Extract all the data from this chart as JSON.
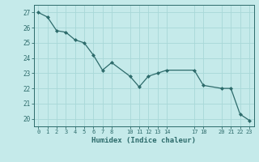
{
  "x_values": [
    0,
    1,
    2,
    3,
    4,
    5,
    6,
    7,
    8,
    10,
    11,
    12,
    13,
    14,
    17,
    18,
    20,
    21,
    22,
    23
  ],
  "y_values": [
    27.0,
    26.7,
    25.8,
    25.7,
    25.2,
    25.0,
    24.2,
    23.2,
    23.7,
    22.8,
    22.1,
    22.8,
    23.0,
    23.2,
    23.2,
    22.2,
    22.0,
    22.0,
    20.3,
    19.9
  ],
  "x_ticks": [
    0,
    1,
    2,
    3,
    4,
    5,
    6,
    7,
    8,
    10,
    11,
    12,
    13,
    14,
    17,
    18,
    20,
    21,
    22,
    23
  ],
  "x_tick_labels": [
    "0",
    "1",
    "2",
    "3",
    "4",
    "5",
    "6",
    "7",
    "8",
    "10",
    "11",
    "12",
    "13",
    "14",
    "17",
    "18",
    "20",
    "21",
    "22",
    "23"
  ],
  "y_ticks": [
    20,
    21,
    22,
    23,
    24,
    25,
    26,
    27
  ],
  "ylim": [
    19.5,
    27.5
  ],
  "xlim": [
    -0.5,
    23.5
  ],
  "xlabel": "Humidex (Indice chaleur)",
  "line_color": "#2d6b6b",
  "marker_color": "#2d6b6b",
  "bg_color": "#c5eaea",
  "grid_color": "#a8d8d8",
  "axis_color": "#2d6b6b",
  "tick_color": "#2d6b6b",
  "figsize": [
    3.2,
    2.0
  ],
  "dpi": 100
}
